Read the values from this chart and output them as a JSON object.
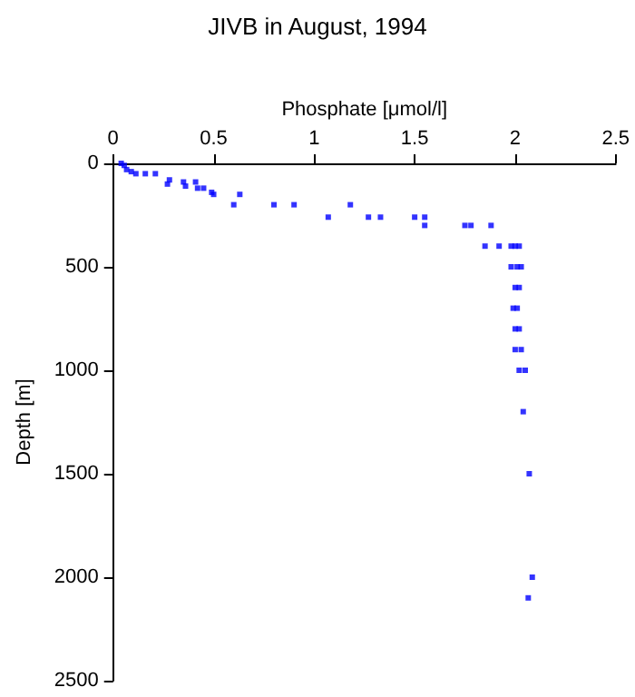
{
  "chart_data": {
    "type": "scatter",
    "title": "JIVB in August, 1994",
    "xlabel": "Phosphate [μmol/l]",
    "ylabel": "Depth [m]",
    "x": [
      0.04,
      0.055,
      0.067,
      0.09,
      0.113,
      0.16,
      0.21,
      0.27,
      0.28,
      0.35,
      0.36,
      0.41,
      0.42,
      0.45,
      0.49,
      0.5,
      0.6,
      0.63,
      0.8,
      0.9,
      1.07,
      1.18,
      1.27,
      1.33,
      1.5,
      1.55,
      1.55,
      1.75,
      1.78,
      1.88,
      1.92,
      1.85,
      1.98,
      2.0,
      2.02,
      1.98,
      2.01,
      2.03,
      2.0,
      2.02,
      1.99,
      2.01,
      2.0,
      2.02,
      2.03,
      2.0,
      2.02,
      2.05,
      2.04,
      2.07,
      2.085,
      2.065
    ],
    "values": [
      0,
      10,
      30,
      40,
      50,
      50,
      50,
      100,
      80,
      90,
      110,
      90,
      120,
      120,
      140,
      150,
      200,
      150,
      200,
      200,
      260,
      200,
      260,
      260,
      260,
      300,
      260,
      300,
      300,
      300,
      400,
      400,
      400,
      400,
      400,
      500,
      500,
      500,
      600,
      600,
      700,
      700,
      800,
      800,
      900,
      900,
      1000,
      1000,
      1200,
      1500,
      2000,
      2100
    ],
    "color": "#0000ff",
    "marker": "square",
    "xlim": [
      0,
      2.5
    ],
    "xticks": [
      0,
      0.5,
      1,
      1.5,
      2,
      2.5
    ],
    "ylim": [
      2500,
      0
    ],
    "yticks": [
      0,
      500,
      1000,
      1500,
      2000,
      2500
    ],
    "grid": false
  }
}
